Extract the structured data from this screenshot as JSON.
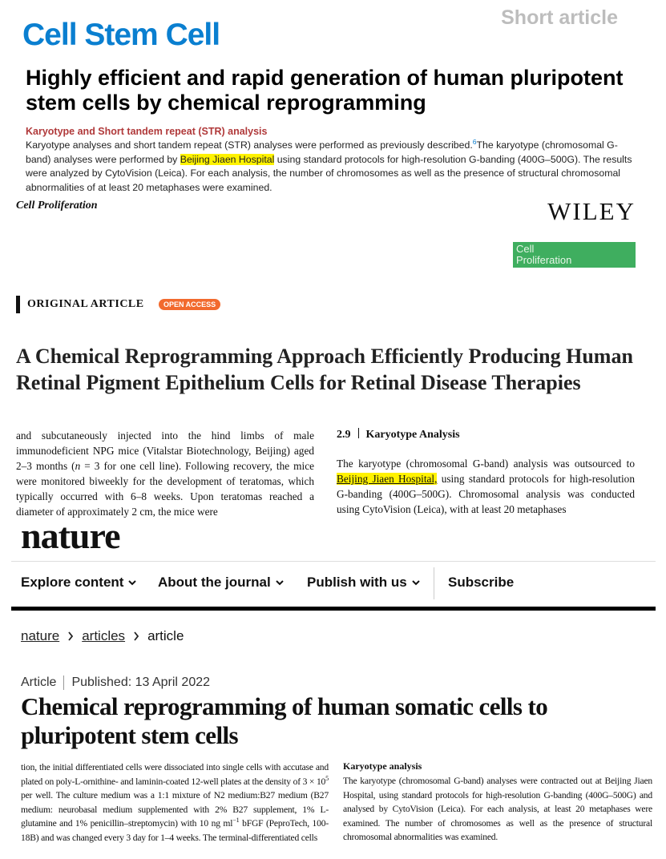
{
  "cell_stem_cell": {
    "article_type": "Short article",
    "journal": "Cell Stem Cell",
    "title": "Highly efficient and rapid generation of human pluripotent stem cells by chemical reprogramming",
    "section_heading": "Karyotype and Short tandem repeat (STR) analysis",
    "body": [
      "Karyotype analyses and short tandem repeat (STR) analyses were performed as previously described.",
      "6",
      "The karyotype (chromosomal G-band) analyses were performed by ",
      "Beijing Jiaen Hospital",
      " using standard protocols for high-resolution G-banding (400G–500G). The results were analyzed by CytoVision (Leica). For each analysis, the number of chromosomes as well as the presence of structural chromosomal abnormalities of at least 20 metaphases were examined."
    ]
  },
  "cell_proliferation": {
    "journal": "Cell Proliferation",
    "publisher": "WILEY",
    "logo": [
      "Cell",
      "Proliferation"
    ],
    "article_type": "ORIGINAL ARTICLE",
    "badge": "OPEN ACCESS",
    "title": "A Chemical Reprogramming Approach Efficiently Producing Human Retinal Pigment Epithelium Cells for Retinal Disease Therapies",
    "left_column": [
      "and subcutaneously injected into the hind limbs of male immunodeficient NPG mice (Vitalstar Biotechnology, Beijing) aged 2–3 months (",
      "n",
      " = 3 for one cell line). Following recovery, the mice were monitored biweekly for the development of teratomas, which typically occurred with 6–8 weeks. Upon teratomas reached a diameter of approximately 2 cm, the mice were"
    ],
    "section_number": "2.9",
    "section_heading": "Karyotype Analysis",
    "right_column": [
      "The karyotype (chromosomal G-band) analysis was outsourced to ",
      "Beijing Jiaen Hospital,",
      " using standard protocols for high-resolution G-banding (400G–500G). Chromosomal analysis was conducted using CytoVision (Leica), with at least 20 metaphases"
    ]
  },
  "nature": {
    "logo": "nature",
    "nav": [
      "Explore content",
      "About the journal",
      "Publish with us",
      "Subscribe"
    ],
    "breadcrumbs": [
      "nature",
      "articles",
      "article"
    ],
    "article_type": "Article",
    "published": "Published: 13 April 2022",
    "title": "Chemical reprogramming of human somatic cells to pluripotent stem cells",
    "left_column": [
      "tion, the initial differentiated cells were dissociated into single cells with accutase and plated on poly-L-ornithine- and laminin-coated 12-well plates at the density of 3 × 10",
      "5",
      " per well. The culture medium was a 1:1 mixture of N2 medium:B27 medium (B27 medium: neurobasal medium supplemented with 2% B27 supplement, 1% L-glutamine and 1% penicillin–streptomycin) with 10 ng ml",
      "−1",
      " bFGF (PeproTech, 100-18B) and was changed every 3 day for 1–4 weeks. The terminal-differentiated cells"
    ],
    "section_heading": "Karyotype analysis",
    "right_column": "The karyotype (chromosomal G-band) analyses were contracted out at Beijing Jiaen Hospital, using standard protocols for high-resolution G-banding (400G–500G) and analysed by CytoVision (Leica). For each analysis, at least 20 metaphases were examined. The number of chromosomes as well as the presence of structural chromosomal abnormalities was examined."
  }
}
